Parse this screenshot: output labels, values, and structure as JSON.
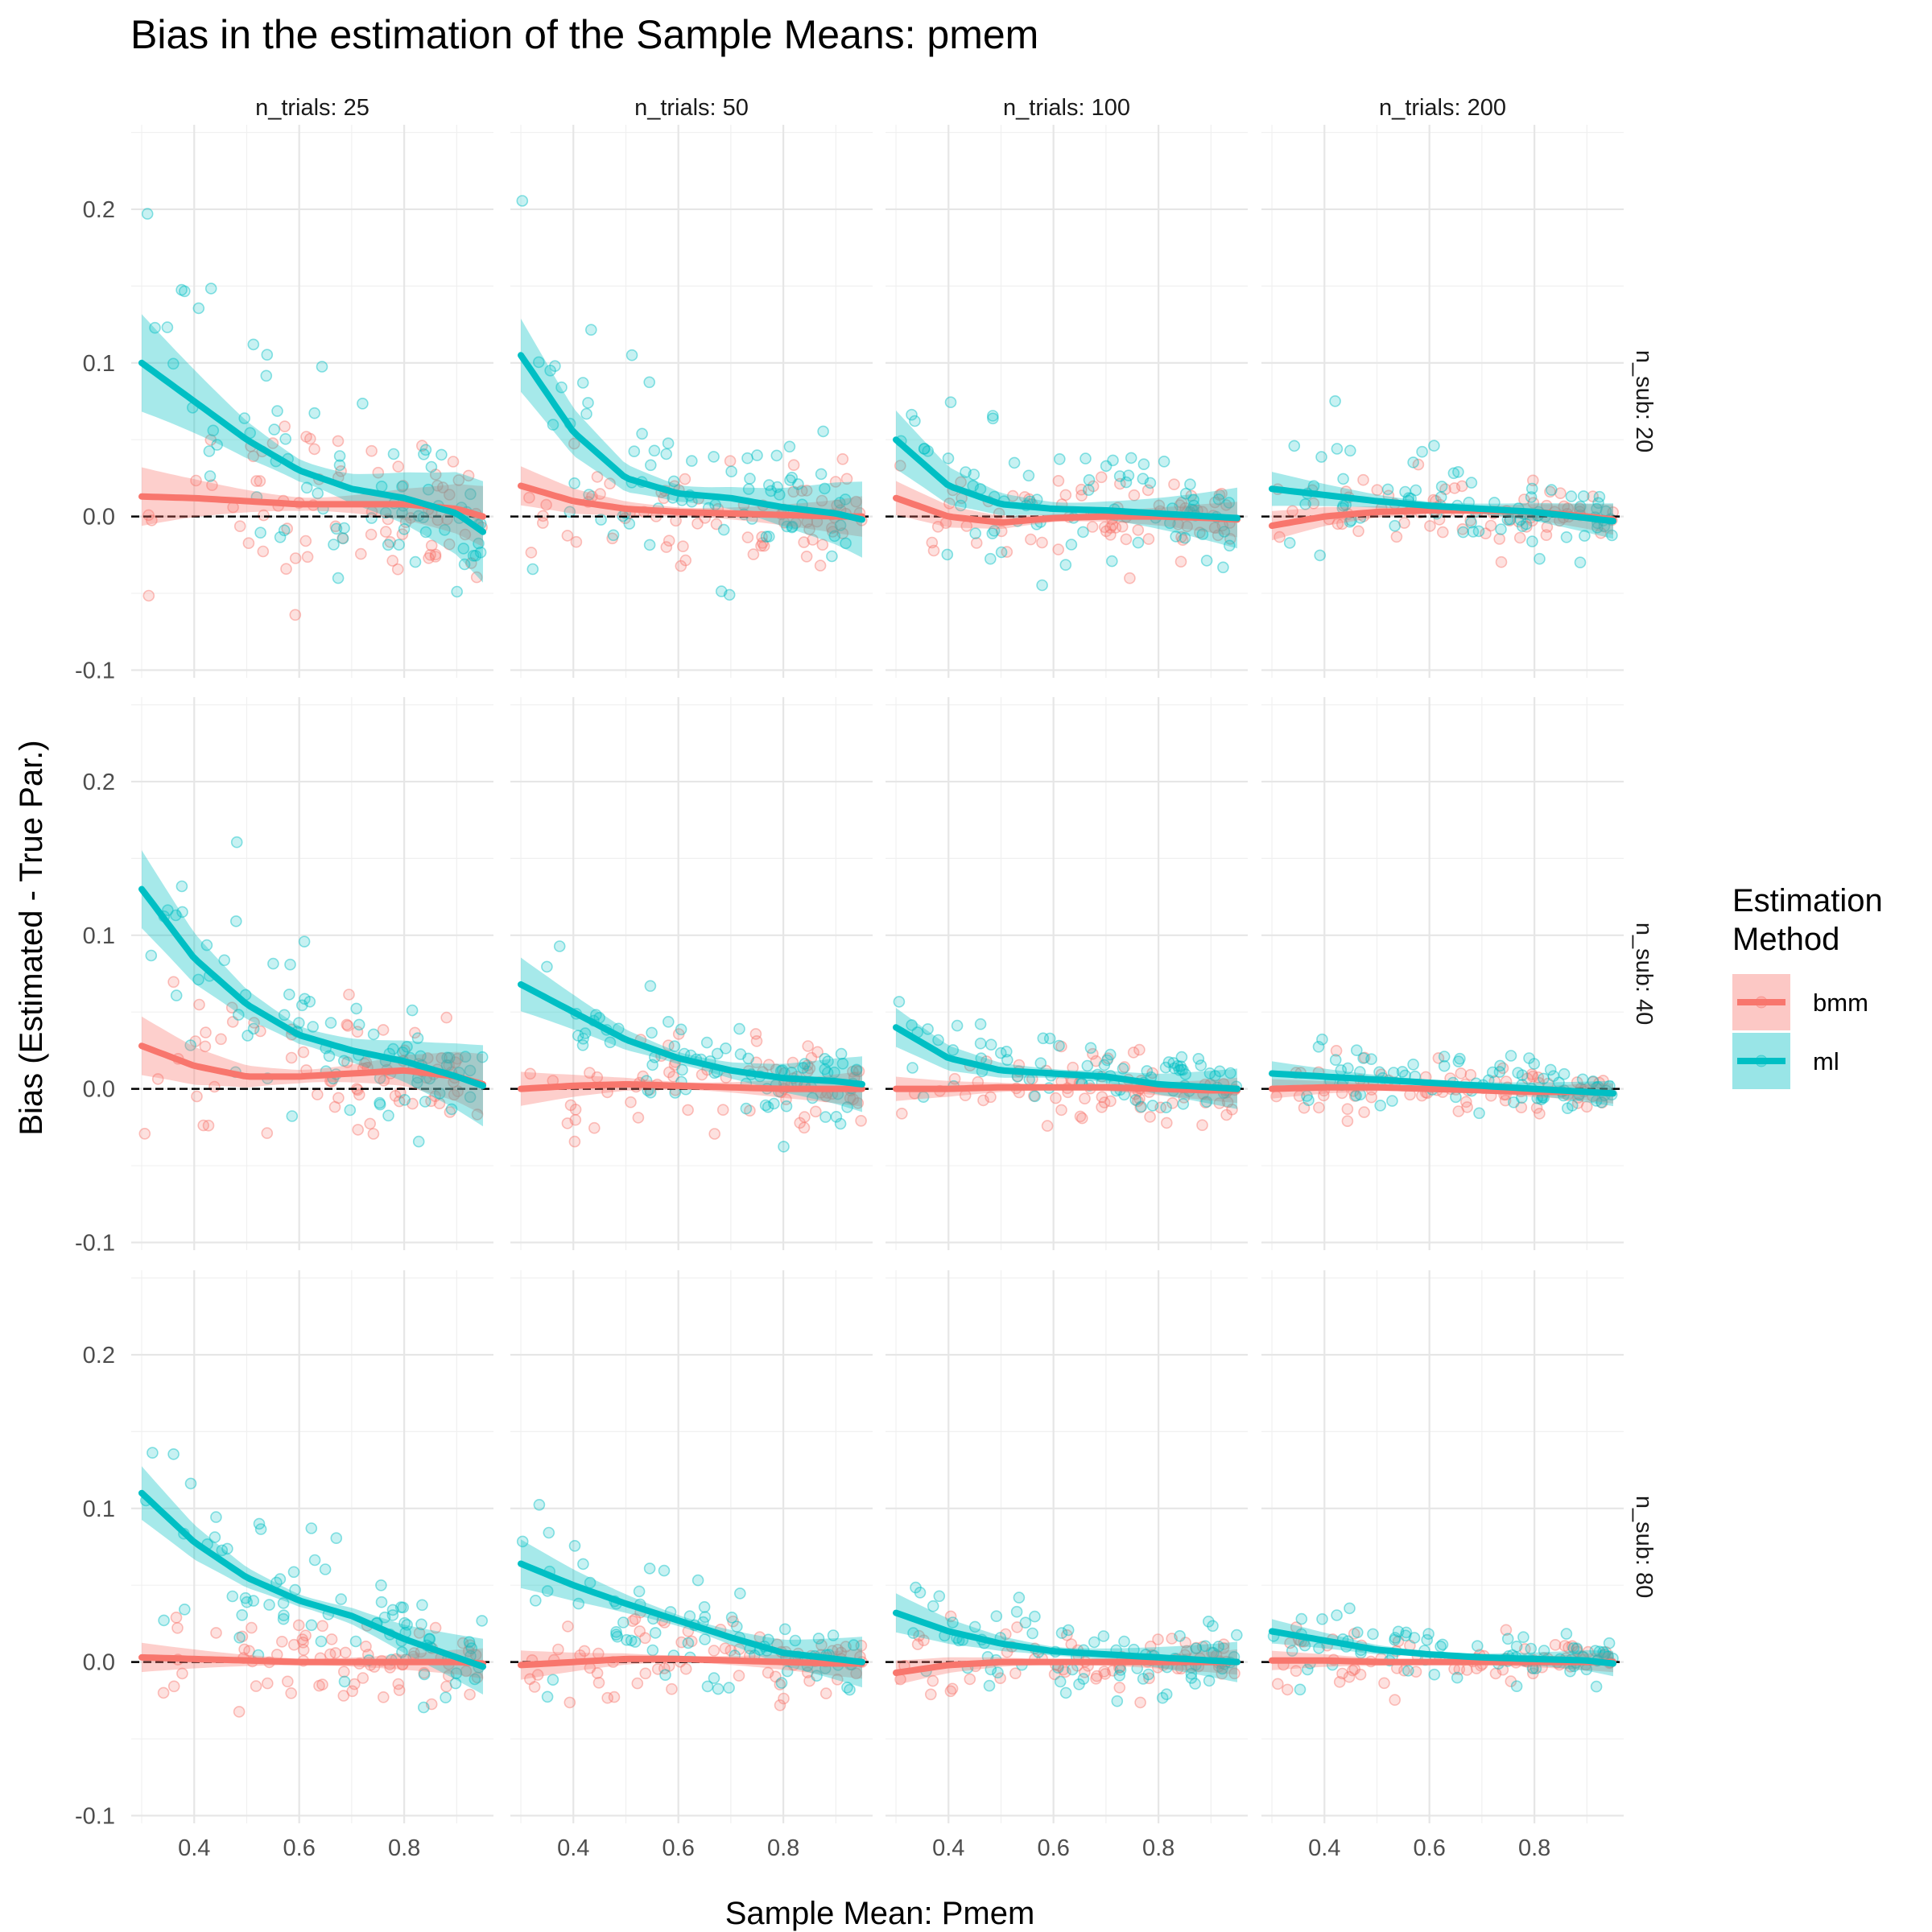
{
  "chart_data": {
    "type": "scatter",
    "title": "Bias in the estimation of the Sample Means: pmem",
    "xlabel": "Sample Mean: Pmem",
    "ylabel": "Bias (Estimated - True Par.)",
    "xlim": [
      0.28,
      0.97
    ],
    "ylim": [
      -0.105,
      0.255
    ],
    "x_ticks": [
      0.4,
      0.6,
      0.8
    ],
    "x_tick_labels": [
      "0.4",
      "0.6",
      "0.8"
    ],
    "y_ticks": [
      -0.1,
      0.0,
      0.1,
      0.2
    ],
    "y_tick_labels": [
      "-0.1",
      "0.0",
      "0.1",
      "0.2"
    ],
    "reference_line": 0,
    "grid": true,
    "facet_columns": [
      "n_trials: 25",
      "n_trials: 50",
      "n_trials: 100",
      "n_trials: 200"
    ],
    "facet_rows": [
      "n_sub: 20",
      "n_sub: 40",
      "n_sub: 80"
    ],
    "legend": {
      "title_lines": [
        "Estimation",
        "Method"
      ],
      "position": "right",
      "entries": [
        {
          "label": "bmm",
          "color": "#F8766D"
        },
        {
          "label": "ml",
          "color": "#00BFC4"
        }
      ]
    },
    "series_colors": {
      "bmm": "#F8766D",
      "ml": "#00BFC4"
    },
    "smooth_x": [
      0.3,
      0.4,
      0.5,
      0.6,
      0.7,
      0.8,
      0.9,
      0.95
    ],
    "panels": [
      {
        "row": 0,
        "col": 0,
        "spread_ml": 0.038,
        "spread_bmm": 0.032,
        "ml": [
          0.1,
          0.075,
          0.05,
          0.03,
          0.018,
          0.012,
          0.002,
          -0.01
        ],
        "bmm": [
          0.013,
          0.012,
          0.01,
          0.008,
          0.008,
          0.008,
          0.005,
          0.0
        ],
        "ml_band": 0.02,
        "bmm_band": 0.012
      },
      {
        "row": 0,
        "col": 1,
        "spread_ml": 0.03,
        "spread_bmm": 0.022,
        "ml": [
          0.105,
          0.055,
          0.025,
          0.015,
          0.012,
          0.006,
          0.002,
          -0.002
        ],
        "bmm": [
          0.02,
          0.01,
          0.005,
          0.003,
          0.002,
          0.001,
          0.0,
          0.0
        ],
        "ml_band": 0.015,
        "bmm_band": 0.008
      },
      {
        "row": 0,
        "col": 2,
        "spread_ml": 0.022,
        "spread_bmm": 0.018,
        "ml": [
          0.05,
          0.02,
          0.008,
          0.005,
          0.004,
          0.002,
          0.0,
          -0.001
        ],
        "bmm": [
          0.012,
          0.0,
          -0.004,
          -0.001,
          0.0,
          0.0,
          -0.001,
          -0.002
        ],
        "ml_band": 0.012,
        "bmm_band": 0.007
      },
      {
        "row": 0,
        "col": 3,
        "spread_ml": 0.018,
        "spread_bmm": 0.015,
        "ml": [
          0.018,
          0.014,
          0.01,
          0.007,
          0.005,
          0.003,
          -0.001,
          -0.003
        ],
        "bmm": [
          -0.006,
          0.0,
          0.003,
          0.004,
          0.004,
          0.003,
          0.0,
          -0.002
        ],
        "ml_band": 0.007,
        "bmm_band": 0.006
      },
      {
        "row": 1,
        "col": 0,
        "spread_ml": 0.03,
        "spread_bmm": 0.025,
        "ml": [
          0.13,
          0.085,
          0.055,
          0.035,
          0.025,
          0.018,
          0.008,
          0.002
        ],
        "bmm": [
          0.028,
          0.015,
          0.008,
          0.008,
          0.01,
          0.012,
          0.008,
          0.003
        ],
        "ml_band": 0.016,
        "bmm_band": 0.012
      },
      {
        "row": 1,
        "col": 1,
        "spread_ml": 0.022,
        "spread_bmm": 0.018,
        "ml": [
          0.068,
          0.05,
          0.032,
          0.02,
          0.012,
          0.007,
          0.005,
          0.003
        ],
        "bmm": [
          0.0,
          0.002,
          0.003,
          0.002,
          0.001,
          0.0,
          0.0,
          0.0
        ],
        "ml_band": 0.011,
        "bmm_band": 0.007
      },
      {
        "row": 1,
        "col": 2,
        "spread_ml": 0.016,
        "spread_bmm": 0.014,
        "ml": [
          0.04,
          0.02,
          0.012,
          0.01,
          0.008,
          0.003,
          0.001,
          0.0
        ],
        "bmm": [
          0.0,
          0.0,
          0.001,
          0.001,
          0.001,
          0.0,
          -0.001,
          -0.001
        ],
        "ml_band": 0.008,
        "bmm_band": 0.005
      },
      {
        "row": 1,
        "col": 3,
        "spread_ml": 0.012,
        "spread_bmm": 0.01,
        "ml": [
          0.01,
          0.008,
          0.006,
          0.004,
          0.002,
          0.0,
          -0.002,
          -0.003
        ],
        "bmm": [
          0.0,
          0.001,
          0.001,
          0.0,
          -0.001,
          -0.002,
          -0.002,
          -0.003
        ],
        "ml_band": 0.005,
        "bmm_band": 0.004
      },
      {
        "row": 2,
        "col": 0,
        "spread_ml": 0.025,
        "spread_bmm": 0.016,
        "ml": [
          0.11,
          0.078,
          0.055,
          0.04,
          0.03,
          0.015,
          0.003,
          -0.003
        ],
        "bmm": [
          0.003,
          0.002,
          0.001,
          0.0,
          0.0,
          0.0,
          0.0,
          -0.001
        ],
        "ml_band": 0.011,
        "bmm_band": 0.006
      },
      {
        "row": 2,
        "col": 1,
        "spread_ml": 0.02,
        "spread_bmm": 0.015,
        "ml": [
          0.064,
          0.05,
          0.038,
          0.027,
          0.016,
          0.006,
          0.002,
          0.0
        ],
        "bmm": [
          -0.002,
          0.0,
          0.002,
          0.002,
          0.001,
          0.0,
          -0.001,
          -0.001
        ],
        "ml_band": 0.01,
        "bmm_band": 0.006
      },
      {
        "row": 2,
        "col": 2,
        "spread_ml": 0.016,
        "spread_bmm": 0.012,
        "ml": [
          0.032,
          0.02,
          0.012,
          0.007,
          0.005,
          0.003,
          0.001,
          0.0
        ],
        "bmm": [
          -0.007,
          -0.002,
          0.0,
          0.0,
          0.0,
          0.0,
          0.0,
          0.0
        ],
        "ml_band": 0.008,
        "bmm_band": 0.005
      },
      {
        "row": 2,
        "col": 3,
        "spread_ml": 0.012,
        "spread_bmm": 0.01,
        "ml": [
          0.02,
          0.014,
          0.008,
          0.005,
          0.003,
          0.002,
          0.001,
          -0.001
        ],
        "bmm": [
          0.001,
          0.001,
          0.0,
          0.0,
          0.0,
          0.0,
          0.0,
          0.0
        ],
        "ml_band": 0.005,
        "bmm_band": 0.004
      }
    ]
  }
}
